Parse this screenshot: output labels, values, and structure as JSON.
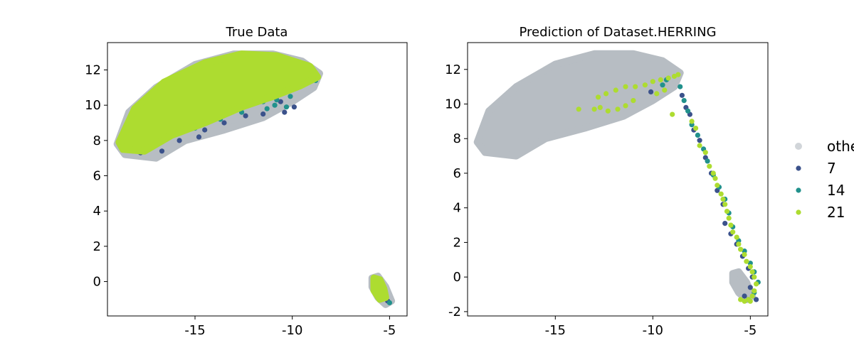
{
  "chart_data": [
    {
      "type": "scatter",
      "title": "True Data",
      "xlabel": "",
      "ylabel": "",
      "xlim": [
        -19.5,
        -4.1
      ],
      "ylim": [
        -1.95,
        13.55
      ],
      "xticks": [
        -15,
        -10,
        -5
      ],
      "xtick_labels": [
        "-15",
        "-10",
        "-5"
      ],
      "yticks": [
        0,
        2,
        4,
        6,
        8,
        10,
        12
      ],
      "ytick_labels": [
        "0",
        "2",
        "4",
        "6",
        "8",
        "10",
        "12"
      ],
      "grid": false,
      "series": [
        {
          "name": "other",
          "color": "#abb2b9",
          "regions": [
            {
              "shape": "ellipse",
              "outline": [
                [
                  -19.0,
                  7.8
                ],
                [
                  -18.4,
                  9.6
                ],
                [
                  -17.0,
                  11.0
                ],
                [
                  -15.0,
                  12.3
                ],
                [
                  -13.0,
                  12.9
                ],
                [
                  -11.0,
                  12.9
                ],
                [
                  -9.5,
                  12.5
                ],
                [
                  -8.6,
                  11.8
                ],
                [
                  -8.9,
                  11.0
                ],
                [
                  -10.0,
                  10.2
                ],
                [
                  -11.5,
                  9.3
                ],
                [
                  -13.5,
                  8.6
                ],
                [
                  -15.5,
                  8.0
                ],
                [
                  -17.0,
                  7.0
                ],
                [
                  -18.6,
                  7.2
                ]
              ]
            },
            {
              "shape": "ellipse",
              "outline": [
                [
                  -5.9,
                  0.2
                ],
                [
                  -5.6,
                  0.3
                ],
                [
                  -5.2,
                  -0.3
                ],
                [
                  -4.9,
                  -1.1
                ],
                [
                  -5.2,
                  -1.3
                ],
                [
                  -5.6,
                  -0.9
                ],
                [
                  -5.9,
                  -0.3
                ]
              ]
            }
          ]
        },
        {
          "name": "7",
          "color": "#3b528b",
          "points": [
            [
              -18.0,
              7.4
            ],
            [
              -17.8,
              7.3
            ],
            [
              -17.5,
              7.6
            ],
            [
              -16.7,
              7.4
            ],
            [
              -15.8,
              8.0
            ],
            [
              -14.8,
              8.2
            ],
            [
              -14.5,
              8.6
            ],
            [
              -13.5,
              9.0
            ],
            [
              -12.4,
              9.4
            ],
            [
              -11.5,
              9.5
            ],
            [
              -10.4,
              9.6
            ],
            [
              -9.9,
              9.9
            ],
            [
              -10.6,
              10.2
            ],
            [
              -9.4,
              11.8
            ],
            [
              -5.7,
              0.1
            ],
            [
              -5.6,
              -0.3
            ],
            [
              -5.4,
              -0.7
            ],
            [
              -5.1,
              -1.1
            ],
            [
              -5.4,
              -0.9
            ],
            [
              -5.7,
              -0.5
            ]
          ]
        },
        {
          "name": "14",
          "color": "#21918c",
          "points": [
            [
              -16.0,
              8.4
            ],
            [
              -15.0,
              8.7
            ],
            [
              -13.7,
              9.2
            ],
            [
              -12.6,
              9.6
            ],
            [
              -11.3,
              9.8
            ],
            [
              -10.8,
              10.3
            ],
            [
              -10.1,
              10.5
            ],
            [
              -10.9,
              10.0
            ],
            [
              -9.6,
              11.2
            ],
            [
              -9.0,
              11.8
            ],
            [
              -8.8,
              11.4
            ],
            [
              -11.5,
              10.2
            ],
            [
              -10.3,
              9.9
            ],
            [
              -5.8,
              -0.2
            ],
            [
              -5.5,
              -0.5
            ],
            [
              -5.3,
              -0.9
            ],
            [
              -5.0,
              -1.2
            ],
            [
              -5.6,
              -0.7
            ]
          ]
        },
        {
          "name": "21",
          "color": "#addc30",
          "regions": [
            {
              "shape": "ellipse",
              "outline": [
                [
                  -18.9,
                  7.9
                ],
                [
                  -18.1,
                  9.8
                ],
                [
                  -16.6,
                  11.3
                ],
                [
                  -14.5,
                  12.4
                ],
                [
                  -12.6,
                  12.9
                ],
                [
                  -10.8,
                  12.8
                ],
                [
                  -9.1,
                  12.2
                ],
                [
                  -8.7,
                  11.6
                ],
                [
                  -9.6,
                  11.1
                ],
                [
                  -11.0,
                  10.5
                ],
                [
                  -12.6,
                  9.9
                ],
                [
                  -14.5,
                  9.0
                ],
                [
                  -16.2,
                  8.3
                ],
                [
                  -17.6,
                  7.4
                ],
                [
                  -18.7,
                  7.5
                ]
              ]
            },
            {
              "shape": "ellipse",
              "outline": [
                [
                  -5.8,
                  0.2
                ],
                [
                  -5.5,
                  0.1
                ],
                [
                  -5.3,
                  -0.4
                ],
                [
                  -5.2,
                  -0.9
                ],
                [
                  -5.5,
                  -1.0
                ],
                [
                  -5.8,
                  -0.5
                ]
              ]
            }
          ]
        }
      ]
    },
    {
      "type": "scatter",
      "title": "Prediction of Dataset.HERRING",
      "xlabel": "",
      "ylabel": "",
      "xlim": [
        -19.5,
        -4.1
      ],
      "ylim": [
        -2.25,
        13.55
      ],
      "xticks": [
        -15,
        -10,
        -5
      ],
      "xtick_labels": [
        "-15",
        "-10",
        "-5"
      ],
      "yticks": [
        -2,
        0,
        2,
        4,
        6,
        8,
        10,
        12
      ],
      "ytick_labels": [
        "-2",
        "0",
        "2",
        "4",
        "6",
        "8",
        "10",
        "12"
      ],
      "grid": false,
      "series": [
        {
          "name": "other",
          "color": "#abb2b9",
          "regions": [
            {
              "shape": "ellipse",
              "outline": [
                [
                  -19.0,
                  7.8
                ],
                [
                  -18.4,
                  9.6
                ],
                [
                  -17.0,
                  11.0
                ],
                [
                  -15.0,
                  12.3
                ],
                [
                  -13.0,
                  12.9
                ],
                [
                  -11.0,
                  12.9
                ],
                [
                  -9.5,
                  12.5
                ],
                [
                  -8.6,
                  11.8
                ],
                [
                  -8.9,
                  11.0
                ],
                [
                  -10.0,
                  10.2
                ],
                [
                  -11.5,
                  9.3
                ],
                [
                  -13.5,
                  8.6
                ],
                [
                  -15.5,
                  8.0
                ],
                [
                  -17.0,
                  7.0
                ],
                [
                  -18.6,
                  7.2
                ]
              ]
            },
            {
              "shape": "ellipse",
              "outline": [
                [
                  -5.9,
                  0.2
                ],
                [
                  -5.6,
                  0.3
                ],
                [
                  -5.2,
                  -0.3
                ],
                [
                  -4.9,
                  -1.1
                ],
                [
                  -5.2,
                  -1.3
                ],
                [
                  -5.6,
                  -0.9
                ],
                [
                  -5.9,
                  -0.3
                ]
              ]
            }
          ]
        },
        {
          "name": "7",
          "color": "#3b528b",
          "points": [
            [
              -8.5,
              10.5
            ],
            [
              -8.3,
              9.8
            ],
            [
              -8.1,
              9.4
            ],
            [
              -7.9,
              8.5
            ],
            [
              -7.6,
              7.9
            ],
            [
              -7.3,
              6.9
            ],
            [
              -7.0,
              6.0
            ],
            [
              -6.7,
              5.0
            ],
            [
              -6.4,
              4.2
            ],
            [
              -6.3,
              3.1
            ],
            [
              -6.0,
              2.5
            ],
            [
              -5.7,
              1.9
            ],
            [
              -5.4,
              1.2
            ],
            [
              -5.1,
              0.5
            ],
            [
              -4.9,
              0.0
            ],
            [
              -5.0,
              -0.6
            ],
            [
              -5.3,
              -1.1
            ],
            [
              -4.7,
              -1.3
            ],
            [
              -10.1,
              10.7
            ]
          ]
        },
        {
          "name": "14",
          "color": "#21918c",
          "points": [
            [
              -8.6,
              11.0
            ],
            [
              -8.4,
              10.2
            ],
            [
              -8.2,
              9.6
            ],
            [
              -8.0,
              8.8
            ],
            [
              -7.7,
              8.2
            ],
            [
              -7.4,
              7.4
            ],
            [
              -7.2,
              6.7
            ],
            [
              -6.9,
              5.9
            ],
            [
              -6.6,
              5.2
            ],
            [
              -6.3,
              4.5
            ],
            [
              -6.1,
              3.7
            ],
            [
              -5.9,
              2.9
            ],
            [
              -5.6,
              2.1
            ],
            [
              -5.3,
              1.5
            ],
            [
              -5.0,
              0.8
            ],
            [
              -4.8,
              0.3
            ],
            [
              -4.6,
              -0.3
            ],
            [
              -4.8,
              -0.9
            ],
            [
              -5.1,
              -1.3
            ],
            [
              -9.5,
              11.1
            ],
            [
              -9.3,
              11.4
            ]
          ]
        },
        {
          "name": "21",
          "color": "#addc30",
          "points": [
            [
              -13.0,
              9.7
            ],
            [
              -12.7,
              9.8
            ],
            [
              -12.3,
              9.6
            ],
            [
              -11.8,
              9.7
            ],
            [
              -11.4,
              9.9
            ],
            [
              -11.0,
              10.2
            ],
            [
              -12.8,
              10.4
            ],
            [
              -12.4,
              10.6
            ],
            [
              -11.9,
              10.8
            ],
            [
              -11.4,
              11.0
            ],
            [
              -10.9,
              11.0
            ],
            [
              -10.4,
              11.1
            ],
            [
              -10.0,
              11.3
            ],
            [
              -9.6,
              11.4
            ],
            [
              -9.2,
              11.5
            ],
            [
              -8.9,
              11.6
            ],
            [
              -8.7,
              11.7
            ],
            [
              -9.4,
              10.8
            ],
            [
              -9.8,
              10.6
            ],
            [
              -13.8,
              9.7
            ],
            [
              -9.0,
              9.4
            ],
            [
              -8.0,
              9.0
            ],
            [
              -7.8,
              8.6
            ],
            [
              -7.6,
              7.6
            ],
            [
              -7.3,
              7.2
            ],
            [
              -7.1,
              6.4
            ],
            [
              -6.9,
              6.0
            ],
            [
              -6.8,
              5.7
            ],
            [
              -6.7,
              5.3
            ],
            [
              -6.5,
              4.8
            ],
            [
              -6.4,
              4.5
            ],
            [
              -6.3,
              4.2
            ],
            [
              -6.2,
              3.8
            ],
            [
              -6.1,
              3.4
            ],
            [
              -6.0,
              3.0
            ],
            [
              -5.9,
              2.6
            ],
            [
              -5.7,
              2.3
            ],
            [
              -5.6,
              1.9
            ],
            [
              -5.5,
              1.6
            ],
            [
              -5.3,
              1.3
            ],
            [
              -5.2,
              0.9
            ],
            [
              -5.0,
              0.6
            ],
            [
              -4.9,
              0.3
            ],
            [
              -4.8,
              0.0
            ],
            [
              -4.7,
              -0.4
            ],
            [
              -4.8,
              -0.8
            ],
            [
              -4.9,
              -1.1
            ],
            [
              -5.1,
              -1.3
            ],
            [
              -5.3,
              -1.4
            ],
            [
              -5.5,
              -1.3
            ],
            [
              -5.0,
              -1.4
            ]
          ]
        }
      ]
    }
  ],
  "legend": {
    "placement": "right",
    "entries": [
      {
        "label": "other",
        "color": "#abb2b9"
      },
      {
        "label": "7",
        "color": "#3b528b"
      },
      {
        "label": "14",
        "color": "#21918c"
      },
      {
        "label": "21",
        "color": "#addc30"
      }
    ]
  }
}
